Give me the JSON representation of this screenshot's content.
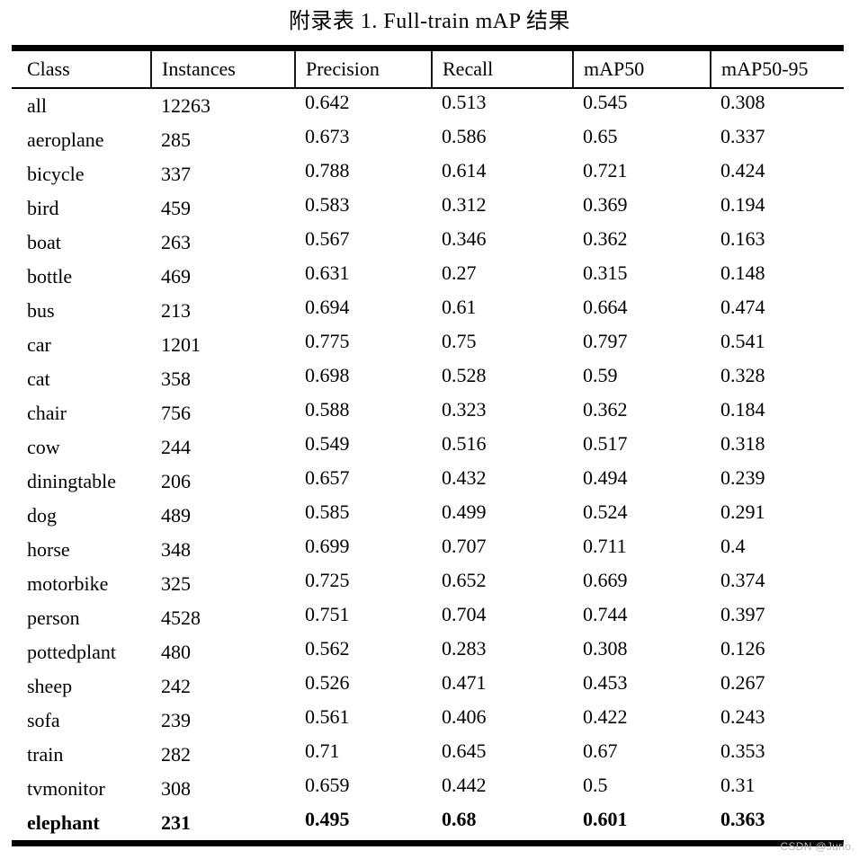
{
  "title": "附录表 1. Full-train mAP 结果",
  "watermark": "CSDN @Jurio.",
  "colors": {
    "text": "#000000",
    "background": "#ffffff",
    "rule": "#000000",
    "watermark": "#bcb4b6"
  },
  "table": {
    "headers": [
      "Class",
      "Instances",
      "Precision",
      "Recall",
      "mAP50",
      "mAP50-95"
    ],
    "rows": [
      {
        "bold": false,
        "values": [
          "all",
          "12263",
          "0.642",
          "0.513",
          "0.545",
          "0.308"
        ]
      },
      {
        "bold": false,
        "values": [
          "aeroplane",
          "285",
          "0.673",
          "0.586",
          "0.65",
          "0.337"
        ]
      },
      {
        "bold": false,
        "values": [
          "bicycle",
          "337",
          "0.788",
          "0.614",
          "0.721",
          "0.424"
        ]
      },
      {
        "bold": false,
        "values": [
          "bird",
          "459",
          "0.583",
          "0.312",
          "0.369",
          "0.194"
        ]
      },
      {
        "bold": false,
        "values": [
          "boat",
          "263",
          "0.567",
          "0.346",
          "0.362",
          "0.163"
        ]
      },
      {
        "bold": false,
        "values": [
          "bottle",
          "469",
          "0.631",
          "0.27",
          "0.315",
          "0.148"
        ]
      },
      {
        "bold": false,
        "values": [
          "bus",
          "213",
          "0.694",
          "0.61",
          "0.664",
          "0.474"
        ]
      },
      {
        "bold": false,
        "values": [
          "car",
          "1201",
          "0.775",
          "0.75",
          "0.797",
          "0.541"
        ]
      },
      {
        "bold": false,
        "values": [
          "cat",
          "358",
          "0.698",
          "0.528",
          "0.59",
          "0.328"
        ]
      },
      {
        "bold": false,
        "values": [
          "chair",
          "756",
          "0.588",
          "0.323",
          "0.362",
          "0.184"
        ]
      },
      {
        "bold": false,
        "values": [
          "cow",
          "244",
          "0.549",
          "0.516",
          "0.517",
          "0.318"
        ]
      },
      {
        "bold": false,
        "values": [
          "diningtable",
          "206",
          "0.657",
          "0.432",
          "0.494",
          "0.239"
        ]
      },
      {
        "bold": false,
        "values": [
          "dog",
          "489",
          "0.585",
          "0.499",
          "0.524",
          "0.291"
        ]
      },
      {
        "bold": false,
        "values": [
          "horse",
          "348",
          "0.699",
          "0.707",
          "0.711",
          "0.4"
        ]
      },
      {
        "bold": false,
        "values": [
          "motorbike",
          "325",
          "0.725",
          "0.652",
          "0.669",
          "0.374"
        ]
      },
      {
        "bold": false,
        "values": [
          "person",
          "4528",
          "0.751",
          "0.704",
          "0.744",
          "0.397"
        ]
      },
      {
        "bold": false,
        "values": [
          "pottedplant",
          "480",
          "0.562",
          "0.283",
          "0.308",
          "0.126"
        ]
      },
      {
        "bold": false,
        "values": [
          "sheep",
          "242",
          "0.526",
          "0.471",
          "0.453",
          "0.267"
        ]
      },
      {
        "bold": false,
        "values": [
          "sofa",
          "239",
          "0.561",
          "0.406",
          "0.422",
          "0.243"
        ]
      },
      {
        "bold": false,
        "values": [
          "train",
          "282",
          "0.71",
          "0.645",
          "0.67",
          "0.353"
        ]
      },
      {
        "bold": false,
        "values": [
          "tvmonitor",
          "308",
          "0.659",
          "0.442",
          "0.5",
          "0.31"
        ]
      },
      {
        "bold": true,
        "values": [
          "elephant",
          "231",
          "0.495",
          "0.68",
          "0.601",
          "0.363"
        ]
      }
    ]
  }
}
